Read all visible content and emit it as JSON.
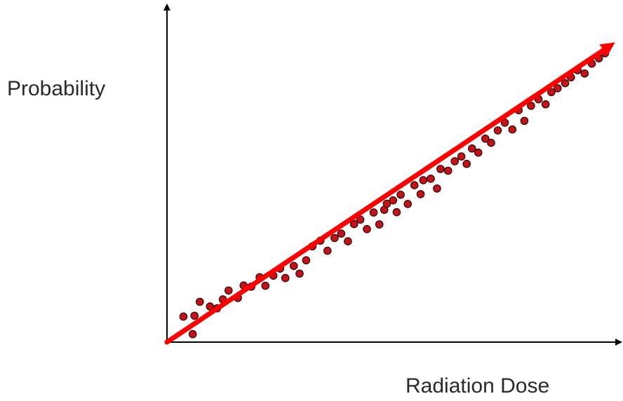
{
  "chart_data": {
    "type": "scatter",
    "title": "",
    "xlabel": "Radiation Dose",
    "ylabel": "Probability",
    "xlim": [
      0,
      100
    ],
    "ylim": [
      0,
      100
    ],
    "grid": false,
    "legend": "none",
    "colors": {
      "point_fill": "#c0141a",
      "point_stroke": "#3a0000",
      "trend_line": "#ff0000",
      "axis": "#000000"
    },
    "trend_line": {
      "x": [
        0,
        100
      ],
      "y": [
        0,
        100
      ]
    },
    "points": [
      {
        "x": 3.7,
        "y": 8.6
      },
      {
        "x": 5.8,
        "y": 2.7
      },
      {
        "x": 7.4,
        "y": 13.6
      },
      {
        "x": 6.2,
        "y": 8.9
      },
      {
        "x": 9.7,
        "y": 12.0
      },
      {
        "x": 11.3,
        "y": 11.4
      },
      {
        "x": 13.9,
        "y": 17.4
      },
      {
        "x": 12.6,
        "y": 14.4
      },
      {
        "x": 16.0,
        "y": 14.9
      },
      {
        "x": 17.3,
        "y": 19.1
      },
      {
        "x": 19.0,
        "y": 18.7
      },
      {
        "x": 20.9,
        "y": 21.9
      },
      {
        "x": 22.2,
        "y": 19.0
      },
      {
        "x": 24.0,
        "y": 22.4
      },
      {
        "x": 25.5,
        "y": 24.8
      },
      {
        "x": 26.7,
        "y": 21.6
      },
      {
        "x": 28.6,
        "y": 25.7
      },
      {
        "x": 29.9,
        "y": 23.1
      },
      {
        "x": 31.4,
        "y": 27.6
      },
      {
        "x": 32.8,
        "y": 32.3
      },
      {
        "x": 34.6,
        "y": 34.2
      },
      {
        "x": 36.2,
        "y": 30.8
      },
      {
        "x": 37.8,
        "y": 35.1
      },
      {
        "x": 39.3,
        "y": 36.6
      },
      {
        "x": 40.8,
        "y": 34.0
      },
      {
        "x": 42.2,
        "y": 39.8
      },
      {
        "x": 43.6,
        "y": 41.3
      },
      {
        "x": 45.1,
        "y": 38.1
      },
      {
        "x": 46.6,
        "y": 43.7
      },
      {
        "x": 47.9,
        "y": 39.7
      },
      {
        "x": 49.0,
        "y": 44.6
      },
      {
        "x": 49.6,
        "y": 46.7
      },
      {
        "x": 51.0,
        "y": 47.8
      },
      {
        "x": 51.8,
        "y": 43.8
      },
      {
        "x": 52.7,
        "y": 49.7
      },
      {
        "x": 54.3,
        "y": 46.6
      },
      {
        "x": 55.8,
        "y": 52.9
      },
      {
        "x": 57.2,
        "y": 49.9
      },
      {
        "x": 57.8,
        "y": 54.6
      },
      {
        "x": 59.5,
        "y": 55.1
      },
      {
        "x": 60.9,
        "y": 51.8
      },
      {
        "x": 61.7,
        "y": 58.4
      },
      {
        "x": 63.4,
        "y": 57.8
      },
      {
        "x": 64.9,
        "y": 61.0
      },
      {
        "x": 66.4,
        "y": 62.6
      },
      {
        "x": 67.6,
        "y": 60.1
      },
      {
        "x": 68.8,
        "y": 65.3
      },
      {
        "x": 70.2,
        "y": 63.9
      },
      {
        "x": 71.8,
        "y": 68.6
      },
      {
        "x": 73.1,
        "y": 67.2
      },
      {
        "x": 74.6,
        "y": 71.4
      },
      {
        "x": 76.2,
        "y": 74.0
      },
      {
        "x": 77.9,
        "y": 71.7
      },
      {
        "x": 79.3,
        "y": 78.2
      },
      {
        "x": 80.6,
        "y": 74.6
      },
      {
        "x": 82.1,
        "y": 79.7
      },
      {
        "x": 83.8,
        "y": 81.9
      },
      {
        "x": 85.4,
        "y": 80.2
      },
      {
        "x": 86.7,
        "y": 84.3
      },
      {
        "x": 88.1,
        "y": 85.6
      },
      {
        "x": 89.8,
        "y": 87.3
      },
      {
        "x": 91.1,
        "y": 89.3
      },
      {
        "x": 92.6,
        "y": 91.7
      },
      {
        "x": 94.2,
        "y": 90.6
      },
      {
        "x": 95.8,
        "y": 93.9
      },
      {
        "x": 97.4,
        "y": 95.7
      },
      {
        "x": 98.8,
        "y": 97.4
      }
    ]
  }
}
